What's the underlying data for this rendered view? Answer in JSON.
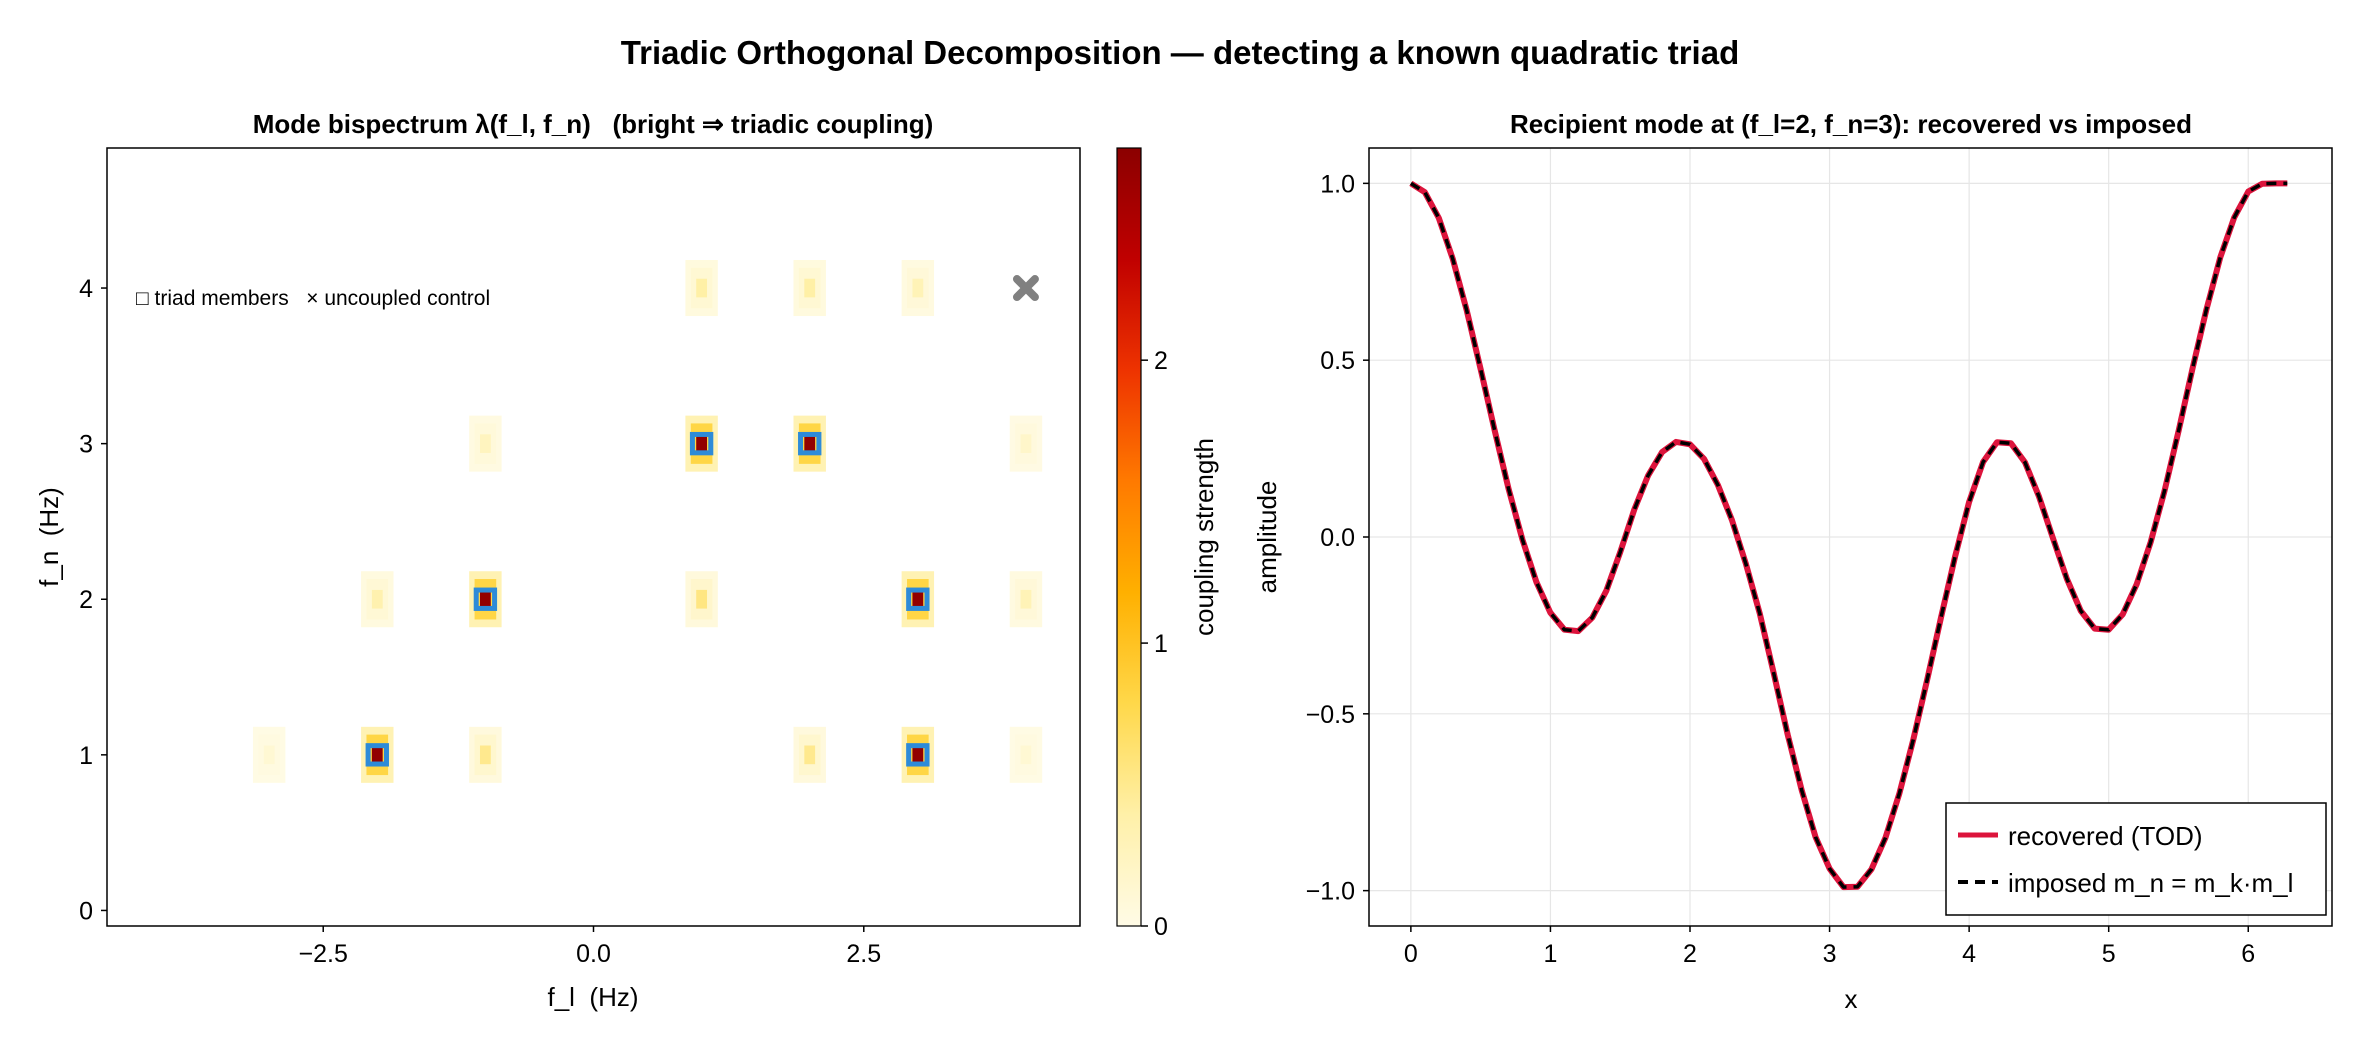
{
  "title": "Triadic Orthogonal Decomposition — detecting a known quadratic triad",
  "colors": {
    "cmap": [
      "#fffbe6",
      "#fff0a8",
      "#ffd84a",
      "#ffb000",
      "#ff7a00",
      "#ee3300",
      "#c00000",
      "#8b0000"
    ],
    "triad_box": "#2e8bd8",
    "control_marker": "#808080",
    "recovered": "#dc143c",
    "imposed": "#000000",
    "grid": "#e6e6e6"
  },
  "chart_data": [
    {
      "type": "heatmap",
      "title": "Mode bispectrum λ(f_l, f_n)   (bright ⇒ triadic coupling)",
      "xlabel": "f_l  (Hz)",
      "ylabel": "f_n  (Hz)",
      "xlim": [
        -4.5,
        4.5
      ],
      "ylim": [
        -0.1,
        4.9
      ],
      "xticks": [
        -2.5,
        0.0,
        2.5
      ],
      "xtick_labels": [
        "−2.5",
        "0.0",
        "2.5"
      ],
      "yticks": [
        0,
        1,
        2,
        3,
        4
      ],
      "ytick_labels": [
        "0",
        "1",
        "2",
        "3",
        "4"
      ],
      "grid": false,
      "annotation": "□ triad members   × uncoupled control",
      "colorbar": {
        "label": "coupling strength",
        "range": [
          0,
          2.75
        ],
        "ticks": [
          0,
          1,
          2
        ],
        "tick_labels": [
          "0",
          "1",
          "2"
        ]
      },
      "cells": [
        {
          "f_l": -3,
          "f_n": 1,
          "value": 0.12
        },
        {
          "f_l": -2,
          "f_n": 1,
          "value": 2.7
        },
        {
          "f_l": -1,
          "f_n": 1,
          "value": 0.5
        },
        {
          "f_l": 2,
          "f_n": 1,
          "value": 0.5
        },
        {
          "f_l": 3,
          "f_n": 1,
          "value": 2.7
        },
        {
          "f_l": 4,
          "f_n": 1,
          "value": 0.12
        },
        {
          "f_l": -2,
          "f_n": 2,
          "value": 0.35
        },
        {
          "f_l": -1,
          "f_n": 2,
          "value": 2.7
        },
        {
          "f_l": 1,
          "f_n": 2,
          "value": 0.55
        },
        {
          "f_l": 3,
          "f_n": 2,
          "value": 2.7
        },
        {
          "f_l": 4,
          "f_n": 2,
          "value": 0.3
        },
        {
          "f_l": -1,
          "f_n": 3,
          "value": 0.25
        },
        {
          "f_l": 1,
          "f_n": 3,
          "value": 2.7
        },
        {
          "f_l": 2,
          "f_n": 3,
          "value": 2.7
        },
        {
          "f_l": 4,
          "f_n": 3,
          "value": 0.18
        },
        {
          "f_l": 1,
          "f_n": 4,
          "value": 0.4
        },
        {
          "f_l": 2,
          "f_n": 4,
          "value": 0.4
        },
        {
          "f_l": 3,
          "f_n": 4,
          "value": 0.3
        }
      ],
      "triad_members": [
        [
          -2,
          1
        ],
        [
          -1,
          2
        ],
        [
          3,
          1
        ],
        [
          3,
          2
        ],
        [
          1,
          3
        ],
        [
          2,
          3
        ]
      ],
      "uncoupled_control": [
        4,
        4
      ]
    },
    {
      "type": "line",
      "title": "Recipient mode at (f_l=2, f_n=3): recovered vs imposed",
      "xlabel": "x",
      "ylabel": "amplitude",
      "xlim": [
        -0.3,
        6.6
      ],
      "ylim": [
        -1.1,
        1.1
      ],
      "xticks": [
        0,
        1,
        2,
        3,
        4,
        5,
        6
      ],
      "xtick_labels": [
        "0",
        "1",
        "2",
        "3",
        "4",
        "5",
        "6"
      ],
      "yticks": [
        -1.0,
        -0.5,
        0.0,
        0.5,
        1.0
      ],
      "ytick_labels": [
        "−1.0",
        "−0.5",
        "0.0",
        "0.5",
        "1.0"
      ],
      "grid": true,
      "legend_position": "bottom-right",
      "series": [
        {
          "name": "recovered (TOD)",
          "style": "solid",
          "x": [
            0.0,
            0.1,
            0.2,
            0.3,
            0.4,
            0.5,
            0.6,
            0.7,
            0.8,
            0.9,
            1.0,
            1.1,
            1.2,
            1.3,
            1.4,
            1.5,
            1.6,
            1.7,
            1.8,
            1.9,
            2.0,
            2.1,
            2.2,
            2.3,
            2.4,
            2.5,
            2.6,
            2.7,
            2.8,
            2.9,
            3.0,
            3.1,
            3.2,
            3.3,
            3.4,
            3.5,
            3.6,
            3.7,
            3.8,
            3.9,
            4.0,
            4.1,
            4.2,
            4.3,
            4.4,
            4.5,
            4.6,
            4.7,
            4.8,
            4.9,
            5.0,
            5.1,
            5.2,
            5.3,
            5.4,
            5.5,
            5.6,
            5.7,
            5.8,
            5.9,
            6.0,
            6.1,
            6.2,
            6.28
          ],
          "y": [
            1.0,
            0.975,
            0.902,
            0.787,
            0.641,
            0.474,
            0.302,
            0.136,
            -0.008,
            -0.128,
            -0.214,
            -0.262,
            -0.266,
            -0.228,
            -0.152,
            -0.043,
            0.077,
            0.174,
            0.24,
            0.269,
            0.262,
            0.221,
            0.147,
            0.048,
            -0.075,
            -0.217,
            -0.385,
            -0.559,
            -0.716,
            -0.849,
            -0.938,
            -0.99,
            -0.989,
            -0.94,
            -0.851,
            -0.726,
            -0.573,
            -0.402,
            -0.225,
            -0.054,
            0.099,
            0.212,
            0.268,
            0.265,
            0.211,
            0.115,
            -0.003,
            -0.118,
            -0.209,
            -0.259,
            -0.262,
            -0.219,
            -0.134,
            -0.015,
            0.13,
            0.299,
            0.475,
            0.643,
            0.791,
            0.904,
            0.977,
            0.999,
            1.0,
            1.0
          ]
        },
        {
          "name": "imposed m_n = m_k·m_l",
          "style": "dashed",
          "x": [
            0.0,
            0.1,
            0.2,
            0.3,
            0.4,
            0.5,
            0.6,
            0.7,
            0.8,
            0.9,
            1.0,
            1.1,
            1.2,
            1.3,
            1.4,
            1.5,
            1.6,
            1.7,
            1.8,
            1.9,
            2.0,
            2.1,
            2.2,
            2.3,
            2.4,
            2.5,
            2.6,
            2.7,
            2.8,
            2.9,
            3.0,
            3.1,
            3.2,
            3.3,
            3.4,
            3.5,
            3.6,
            3.7,
            3.8,
            3.9,
            4.0,
            4.1,
            4.2,
            4.3,
            4.4,
            4.5,
            4.6,
            4.7,
            4.8,
            4.9,
            5.0,
            5.1,
            5.2,
            5.3,
            5.4,
            5.5,
            5.6,
            5.7,
            5.8,
            5.9,
            6.0,
            6.1,
            6.2,
            6.28
          ],
          "y": [
            1.0,
            0.975,
            0.902,
            0.787,
            0.641,
            0.474,
            0.302,
            0.136,
            -0.008,
            -0.128,
            -0.214,
            -0.262,
            -0.266,
            -0.228,
            -0.152,
            -0.043,
            0.077,
            0.174,
            0.24,
            0.269,
            0.262,
            0.221,
            0.147,
            0.048,
            -0.075,
            -0.217,
            -0.385,
            -0.559,
            -0.716,
            -0.849,
            -0.938,
            -0.99,
            -0.989,
            -0.94,
            -0.851,
            -0.726,
            -0.573,
            -0.402,
            -0.225,
            -0.054,
            0.099,
            0.212,
            0.268,
            0.265,
            0.211,
            0.115,
            -0.003,
            -0.118,
            -0.209,
            -0.259,
            -0.262,
            -0.219,
            -0.134,
            -0.015,
            0.13,
            0.299,
            0.475,
            0.643,
            0.791,
            0.904,
            0.977,
            0.999,
            1.0,
            1.0
          ]
        }
      ]
    }
  ]
}
